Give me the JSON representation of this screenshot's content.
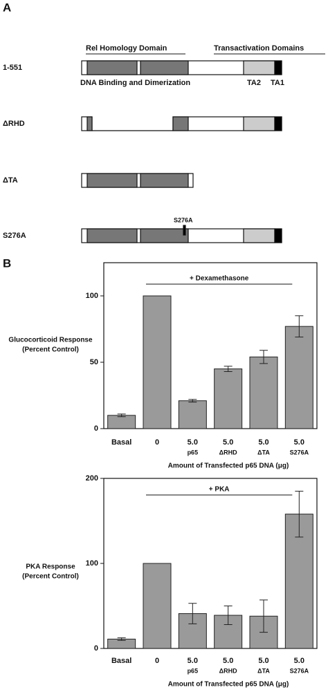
{
  "panel_labels": [
    "A",
    "B"
  ],
  "diagram": {
    "domain_headers": [
      "Rel Homology Domain",
      "Transactivation Domains"
    ],
    "domain_notes": [
      "DNA Binding and Dimerization",
      "TA2",
      "TA1"
    ],
    "constructs": [
      {
        "label": "1-551"
      },
      {
        "label": "ΔRHD"
      },
      {
        "label": "ΔTA"
      },
      {
        "label": "S276A",
        "mutation": "S276A"
      }
    ]
  },
  "chart_data": [
    {
      "type": "bar",
      "annotation": "+ Dexamethasone",
      "ylabel": [
        "Glucocorticoid Response",
        "(Percent Control)"
      ],
      "xlabel": "Amount of Transfected p65 DNA (μg)",
      "categories": [
        "Basal",
        "0",
        "5.0",
        "5.0",
        "5.0",
        "5.0"
      ],
      "category_sublabels": [
        null,
        null,
        "p65",
        "ΔRHD",
        "ΔTA",
        "S276A"
      ],
      "values": [
        10,
        100,
        21,
        45,
        54,
        77
      ],
      "errors": [
        1,
        0,
        1,
        2,
        5,
        8
      ],
      "color": "#9a9a9a",
      "ylim": [
        0,
        125
      ],
      "yticks": [
        0,
        50,
        100
      ]
    },
    {
      "type": "bar",
      "annotation": "+ PKA",
      "ylabel": [
        "PKA Response",
        "(Percent Control)"
      ],
      "xlabel": "Amount of Transfected p65 DNA (μg)",
      "categories": [
        "Basal",
        "0",
        "5.0",
        "5.0",
        "5.0",
        "5.0"
      ],
      "category_sublabels": [
        null,
        null,
        "p65",
        "ΔRHD",
        "ΔTA",
        "S276A"
      ],
      "values": [
        11,
        100,
        41,
        39,
        38,
        158
      ],
      "errors": [
        1.5,
        0,
        12,
        11,
        19,
        27
      ],
      "color": "#9a9a9a",
      "ylim": [
        0,
        200
      ],
      "yticks": [
        0,
        100,
        200
      ]
    }
  ]
}
